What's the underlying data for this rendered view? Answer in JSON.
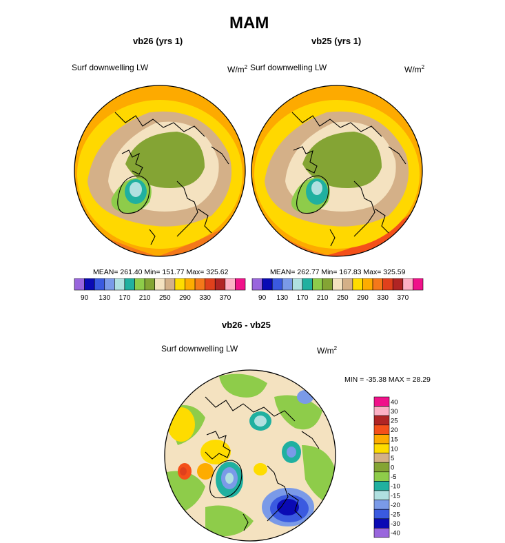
{
  "page_title": "MAM",
  "chart_data": [
    {
      "type": "heatmap",
      "projection": "polar-stereographic north",
      "title": "vb26 (yrs 1)",
      "variable": "Surf downwelling LW",
      "units_base": "W/m",
      "units_exp": "2",
      "stats": "MEAN= 261.40  Min= 151.77  Max= 325.62",
      "mean": 261.4,
      "min": 151.77,
      "max": 325.62,
      "colorbar_orientation": "horizontal",
      "colorbar_ticks": [
        "90",
        "130",
        "170",
        "210",
        "250",
        "290",
        "330",
        "370"
      ],
      "colorbar_colors": [
        "#9966dd",
        "#0a0ab4",
        "#3a5ae0",
        "#7a9ae8",
        "#b0e0e0",
        "#20b0a0",
        "#8ecc4a",
        "#84a434",
        "#f4e2c0",
        "#d4b088",
        "#fedc00",
        "#fdac00",
        "#f4781a",
        "#e0401c",
        "#b02424",
        "#fcb0c4",
        "#f0128a"
      ],
      "bands": [
        {
          "ring": 1.0,
          "color": "#fdaa00"
        },
        {
          "ring": 0.78,
          "color": "#ffd800"
        },
        {
          "ring": 0.62,
          "color": "#d4b088"
        },
        {
          "ring": 0.5,
          "color": "#f4e2c0"
        },
        {
          "ring": 0.38,
          "color": "#84a434"
        }
      ]
    },
    {
      "type": "heatmap",
      "projection": "polar-stereographic north",
      "title": "vb25 (yrs 1)",
      "variable": "Surf downwelling LW",
      "units_base": "W/m",
      "units_exp": "2",
      "stats": "MEAN= 262.77  Min= 167.83  Max= 325.59",
      "mean": 262.77,
      "min": 167.83,
      "max": 325.59,
      "colorbar_orientation": "horizontal",
      "colorbar_ticks": [
        "90",
        "130",
        "170",
        "210",
        "250",
        "290",
        "330",
        "370"
      ],
      "colorbar_colors": [
        "#9966dd",
        "#0a0ab4",
        "#3a5ae0",
        "#7a9ae8",
        "#b0e0e0",
        "#20b0a0",
        "#8ecc4a",
        "#84a434",
        "#f4e2c0",
        "#d4b088",
        "#fedc00",
        "#fdac00",
        "#f4781a",
        "#e0401c",
        "#b02424",
        "#fcb0c4",
        "#f0128a"
      ],
      "bands": [
        {
          "ring": 1.0,
          "color": "#fdaa00"
        },
        {
          "ring": 0.78,
          "color": "#ffd800"
        },
        {
          "ring": 0.62,
          "color": "#d4b088"
        },
        {
          "ring": 0.5,
          "color": "#f4e2c0"
        },
        {
          "ring": 0.38,
          "color": "#84a434"
        }
      ]
    },
    {
      "type": "heatmap",
      "projection": "polar-stereographic north",
      "title": "vb26 - vb25",
      "variable": "Surf downwelling LW",
      "units_base": "W/m",
      "units_exp": "2",
      "stats": "MIN = -35.38 MAX =  28.29",
      "min": -35.38,
      "max": 28.29,
      "colorbar_orientation": "vertical",
      "colorbar_ticks": [
        "40",
        "30",
        "25",
        "20",
        "15",
        "10",
        "5",
        "0",
        "-5",
        "-10",
        "-15",
        "-20",
        "-25",
        "-30",
        "-40"
      ],
      "colorbar_colors": [
        "#f0128a",
        "#fcb0c4",
        "#b02424",
        "#f4501a",
        "#fdac00",
        "#fedc00",
        "#d4b088",
        "#84a434",
        "#8ecc4a",
        "#20b0a0",
        "#b0e0e0",
        "#7a9ae8",
        "#3a5ae0",
        "#0a0ab4",
        "#9966dd"
      ]
    }
  ]
}
